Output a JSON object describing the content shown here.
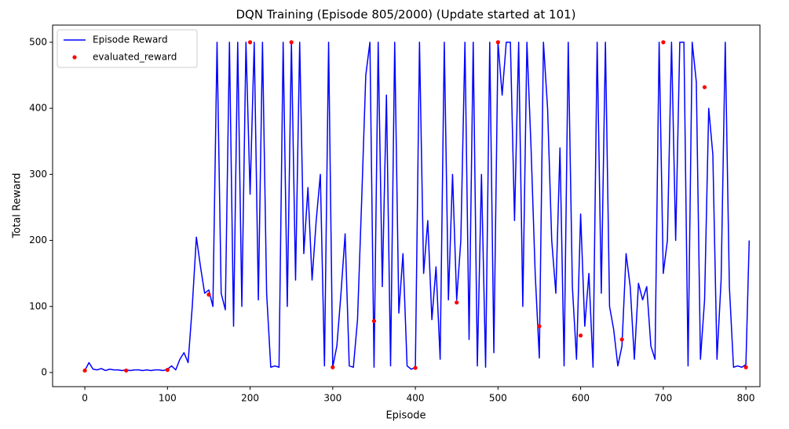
{
  "chart_data": {
    "type": "line",
    "title": "DQN Training (Episode 805/2000) (Update started at 101)",
    "x_label": "Episode",
    "y_label": "Total Reward",
    "xlim": [
      -39,
      817
    ],
    "ylim": [
      -21.4,
      526
    ],
    "xticks": [
      0,
      100,
      200,
      300,
      400,
      500,
      600,
      700,
      800
    ],
    "yticks": [
      0,
      100,
      200,
      300,
      400,
      500
    ],
    "legend": "upper left",
    "series": [
      {
        "name": "Episode Reward",
        "color": "#0000ff",
        "mode": "line",
        "x": [
          0,
          5,
          10,
          15,
          20,
          25,
          30,
          35,
          40,
          45,
          50,
          55,
          60,
          65,
          70,
          75,
          80,
          85,
          90,
          95,
          100,
          105,
          110,
          115,
          120,
          125,
          130,
          135,
          140,
          145,
          150,
          155,
          160,
          165,
          170,
          175,
          180,
          185,
          190,
          195,
          200,
          205,
          210,
          215,
          220,
          225,
          230,
          235,
          240,
          245,
          250,
          255,
          260,
          265,
          270,
          275,
          280,
          285,
          290,
          295,
          300,
          305,
          310,
          315,
          320,
          325,
          330,
          335,
          340,
          345,
          350,
          355,
          360,
          365,
          370,
          375,
          380,
          385,
          390,
          395,
          400,
          405,
          410,
          415,
          420,
          425,
          430,
          435,
          440,
          445,
          450,
          455,
          460,
          465,
          470,
          475,
          480,
          485,
          490,
          495,
          500,
          505,
          510,
          515,
          520,
          525,
          530,
          535,
          540,
          545,
          550,
          555,
          560,
          565,
          570,
          575,
          580,
          585,
          590,
          595,
          600,
          605,
          610,
          615,
          620,
          625,
          630,
          635,
          640,
          645,
          650,
          655,
          660,
          665,
          670,
          675,
          680,
          685,
          690,
          695,
          700,
          705,
          710,
          715,
          720,
          725,
          730,
          735,
          740,
          745,
          750,
          755,
          760,
          765,
          770,
          775,
          780,
          785,
          790,
          795,
          800,
          804
        ],
        "values": [
          3,
          15,
          5,
          4,
          6,
          3,
          5,
          4,
          4,
          3,
          4,
          3,
          4,
          4,
          3,
          4,
          3,
          4,
          4,
          3,
          5,
          10,
          4,
          20,
          30,
          15,
          100,
          205,
          160,
          120,
          125,
          100,
          500,
          120,
          95,
          500,
          70,
          500,
          100,
          500,
          270,
          500,
          110,
          500,
          120,
          8,
          10,
          8,
          500,
          100,
          500,
          140,
          500,
          180,
          280,
          140,
          230,
          300,
          10,
          500,
          8,
          40,
          120,
          210,
          10,
          8,
          80,
          260,
          450,
          500,
          8,
          500,
          130,
          420,
          10,
          500,
          90,
          180,
          10,
          5,
          8,
          500,
          150,
          230,
          80,
          160,
          20,
          500,
          110,
          300,
          110,
          200,
          500,
          50,
          500,
          10,
          300,
          8,
          500,
          30,
          500,
          420,
          500,
          500,
          230,
          500,
          100,
          500,
          340,
          150,
          22,
          500,
          400,
          200,
          120,
          340,
          10,
          500,
          130,
          20,
          240,
          70,
          150,
          8,
          500,
          120,
          500,
          100,
          65,
          10,
          40,
          180,
          130,
          20,
          135,
          110,
          130,
          40,
          20,
          500,
          150,
          200,
          500,
          200,
          500,
          500,
          10,
          500,
          440,
          20,
          110,
          400,
          330,
          20,
          140,
          500,
          130,
          8,
          10,
          8,
          12,
          200
        ]
      },
      {
        "name": "evaluated_reward",
        "color": "#ff0000",
        "mode": "markers",
        "x": [
          0,
          50,
          100,
          150,
          200,
          250,
          300,
          350,
          400,
          450,
          500,
          550,
          600,
          650,
          700,
          750,
          800
        ],
        "values": [
          3,
          3,
          4,
          118,
          500,
          500,
          8,
          78,
          7,
          106,
          500,
          70,
          56,
          50,
          500,
          432,
          8
        ]
      }
    ]
  }
}
